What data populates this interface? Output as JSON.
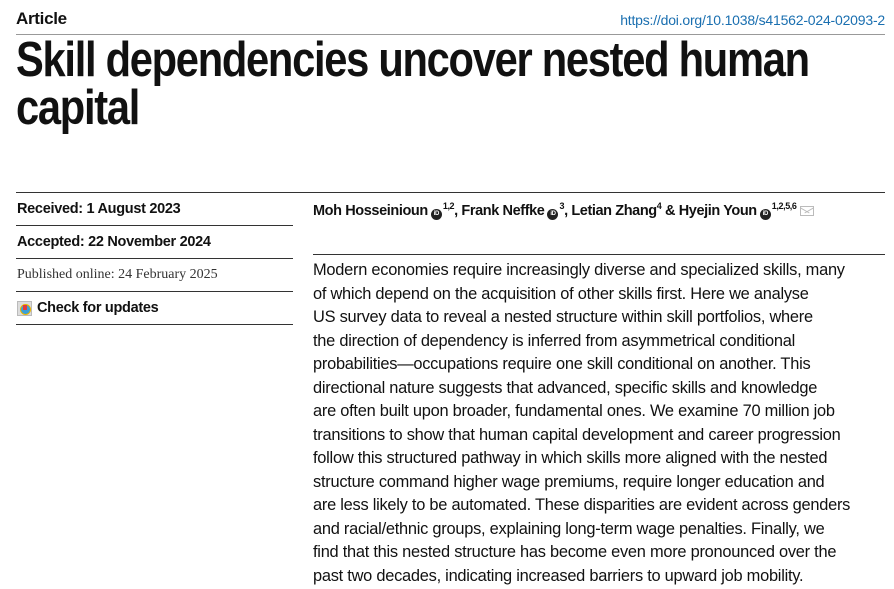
{
  "header": {
    "section": "Article",
    "doi": "https://doi.org/10.1038/s41562-024-02093-2"
  },
  "title_lines": [
    "Skill dependencies uncover nested human",
    "capital"
  ],
  "meta": {
    "received": "Received: 1 August 2023",
    "accepted": "Accepted: 22 November 2024",
    "published": "Published online: 24 February 2025",
    "check_updates": "Check for updates"
  },
  "authors": [
    {
      "name": "Moh Hosseinioun",
      "orcid": true,
      "aff": "1,2",
      "sep": ", "
    },
    {
      "name": "Frank Neffke",
      "orcid": true,
      "aff": "3",
      "sep": ", "
    },
    {
      "name": "Letian Zhang",
      "orcid": false,
      "aff": "4",
      "sep": " & "
    },
    {
      "name": "Hyejin Youn",
      "orcid": true,
      "aff": "1,2,5,6",
      "sep": ""
    }
  ],
  "orcid_label": "iD",
  "abstract_lines": [
    "Modern economies require increasingly diverse and specialized skills, many",
    "of which depend on the acquisition of other skills first. Here we analyse",
    "US survey data to reveal a nested structure within skill portfolios, where",
    "the direction of dependency is inferred from asymmetrical conditional",
    "probabilities—occupations require one skill conditional on another. This",
    "directional nature suggests that advanced, specific skills and knowledge",
    "are often built upon broader, fundamental ones. We examine 70 million job",
    "transitions to show that human capital development and career progression",
    "follow this structured pathway in which skills more aligned with the nested",
    "structure command higher wage premiums, require longer education and",
    "are less likely to be automated. These disparities are evident across genders",
    "and racial/ethnic groups, explaining long-term wage penalties. Finally, we",
    "find that this nested structure has become even more pronounced over the",
    "past two decades, indicating increased barriers to upward job mobility."
  ],
  "colors": {
    "link": "#1a6fb0",
    "text": "#111111"
  }
}
